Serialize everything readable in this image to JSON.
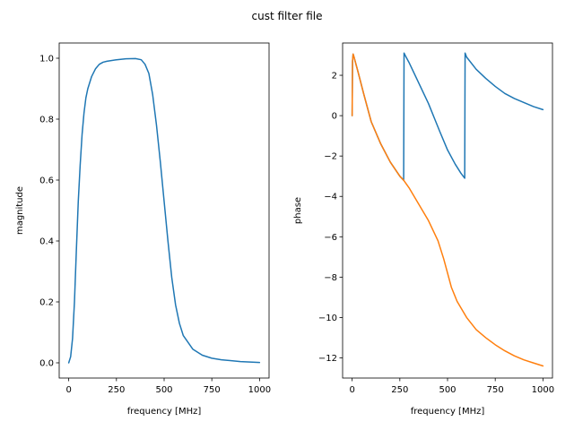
{
  "figure": {
    "suptitle": "cust filter file",
    "colors": {
      "blue": "#1f77b4",
      "orange": "#ff7f0e"
    }
  },
  "chart_data": [
    {
      "type": "line",
      "title": "",
      "xlabel": "frequency [MHz]",
      "ylabel": "magnitude",
      "xlim": [
        -50,
        1050
      ],
      "ylim": [
        -0.05,
        1.05
      ],
      "xticks": [
        0,
        250,
        500,
        750,
        1000
      ],
      "xtick_labels": [
        "0",
        "250",
        "500",
        "750",
        "1000"
      ],
      "yticks": [
        0.0,
        0.2,
        0.4,
        0.6,
        0.8,
        1.0
      ],
      "ytick_labels": [
        "0.0",
        "0.2",
        "0.4",
        "0.6",
        "0.8",
        "1.0"
      ],
      "grid": false,
      "series": [
        {
          "color": "#1f77b4",
          "x": [
            0,
            10,
            20,
            30,
            40,
            50,
            60,
            70,
            80,
            90,
            100,
            120,
            140,
            160,
            180,
            200,
            250,
            300,
            350,
            380,
            400,
            420,
            440,
            460,
            480,
            500,
            520,
            540,
            560,
            580,
            600,
            650,
            700,
            750,
            800,
            900,
            1000
          ],
          "y": [
            0.0,
            0.02,
            0.08,
            0.2,
            0.37,
            0.53,
            0.65,
            0.75,
            0.82,
            0.87,
            0.9,
            0.94,
            0.965,
            0.98,
            0.987,
            0.99,
            0.995,
            0.998,
            0.999,
            0.995,
            0.98,
            0.95,
            0.88,
            0.78,
            0.66,
            0.53,
            0.4,
            0.28,
            0.19,
            0.13,
            0.09,
            0.045,
            0.025,
            0.015,
            0.01,
            0.004,
            0.001
          ]
        }
      ]
    },
    {
      "type": "line",
      "title": "",
      "xlabel": "frequency [MHz]",
      "ylabel": "phase",
      "xlim": [
        -50,
        1050
      ],
      "ylim": [
        -13.0,
        3.6
      ],
      "xticks": [
        0,
        250,
        500,
        750,
        1000
      ],
      "xtick_labels": [
        "0",
        "250",
        "500",
        "750",
        "1000"
      ],
      "yticks": [
        2,
        0,
        -2,
        -4,
        -6,
        -8,
        -10,
        -12
      ],
      "ytick_labels": [
        "2",
        "0",
        "−2",
        "−4",
        "−6",
        "−8",
        "−10",
        "−12"
      ],
      "grid": false,
      "series": [
        {
          "color": "#1f77b4",
          "x": [
            0,
            2,
            5,
            10,
            30,
            60,
            100,
            150,
            200,
            250,
            270,
            272,
            280,
            300,
            330,
            360,
            400,
            430,
            460,
            500,
            540,
            570,
            590,
            592,
            600,
            650,
            700,
            750,
            800,
            850,
            900,
            950,
            1000
          ],
          "y": [
            0,
            2.7,
            3.05,
            2.9,
            2.2,
            1.1,
            -0.3,
            -1.4,
            -2.3,
            -3.0,
            -3.2,
            3.1,
            2.95,
            2.6,
            2.0,
            1.4,
            0.6,
            -0.1,
            -0.8,
            -1.7,
            -2.4,
            -2.85,
            -3.1,
            3.1,
            2.9,
            2.3,
            1.85,
            1.45,
            1.1,
            0.85,
            0.65,
            0.45,
            0.3
          ]
        },
        {
          "color": "#ff7f0e",
          "x": [
            0,
            2,
            5,
            10,
            30,
            60,
            100,
            150,
            200,
            250,
            270,
            300,
            350,
            400,
            450,
            480,
            500,
            520,
            550,
            600,
            650,
            700,
            750,
            800,
            850,
            900,
            950,
            1000
          ],
          "y": [
            0,
            2.7,
            3.05,
            2.9,
            2.2,
            1.1,
            -0.3,
            -1.4,
            -2.3,
            -3.0,
            -3.2,
            -3.6,
            -4.4,
            -5.2,
            -6.2,
            -7.1,
            -7.8,
            -8.5,
            -9.2,
            -10.0,
            -10.6,
            -11.0,
            -11.35,
            -11.65,
            -11.9,
            -12.1,
            -12.25,
            -12.4
          ]
        }
      ]
    }
  ]
}
